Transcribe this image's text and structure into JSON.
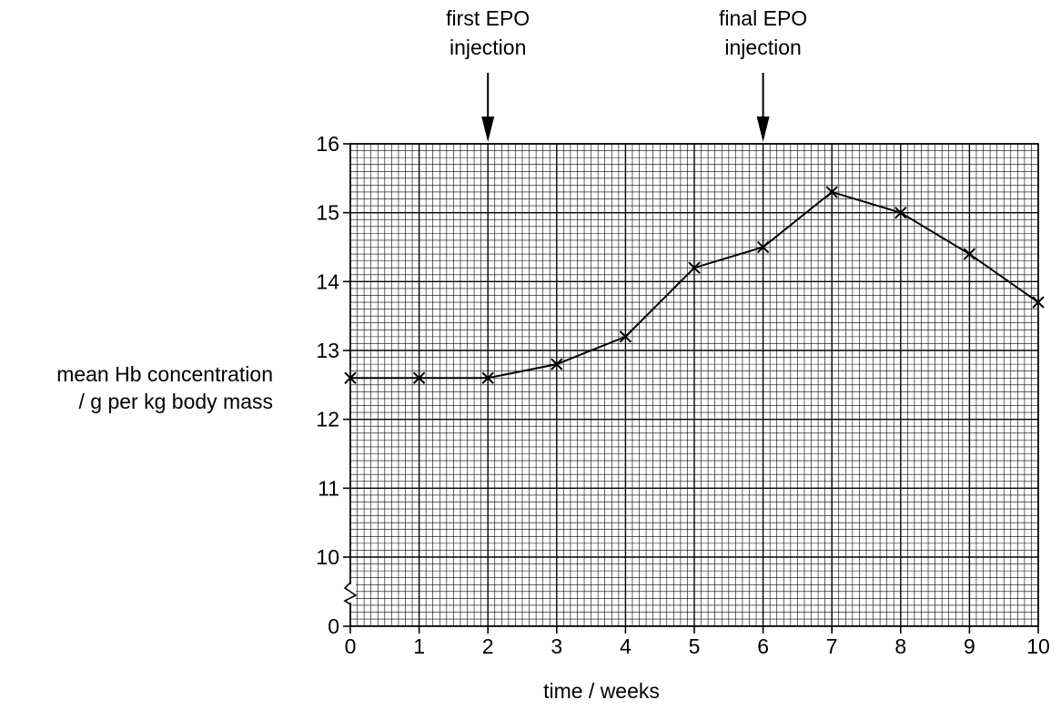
{
  "chart_data": {
    "type": "line",
    "title": "",
    "xlabel": "time / weeks",
    "ylabel_lines": [
      "mean Hb concentration",
      "/ g per kg body mass"
    ],
    "x": [
      0,
      1,
      2,
      3,
      4,
      5,
      6,
      7,
      8,
      9,
      10
    ],
    "series": [
      {
        "values": [
          12.6,
          12.6,
          12.6,
          12.8,
          13.2,
          14.2,
          14.5,
          15.3,
          15.0,
          14.4,
          13.7
        ]
      }
    ],
    "xlim": [
      0,
      10
    ],
    "ylim": [
      9.5,
      16
    ],
    "axis_break": true,
    "x_ticks": [
      "0",
      "1",
      "2",
      "3",
      "4",
      "5",
      "6",
      "7",
      "8",
      "9",
      "10"
    ],
    "y_ticks": [
      "0",
      "10",
      "11",
      "12",
      "13",
      "14",
      "15",
      "16"
    ],
    "grid": true,
    "marker": "cross",
    "annotations": [
      {
        "text_lines": [
          "first EPO",
          "injection"
        ],
        "x": 2
      },
      {
        "text_lines": [
          "final EPO",
          "injection"
        ],
        "x": 6
      }
    ]
  }
}
